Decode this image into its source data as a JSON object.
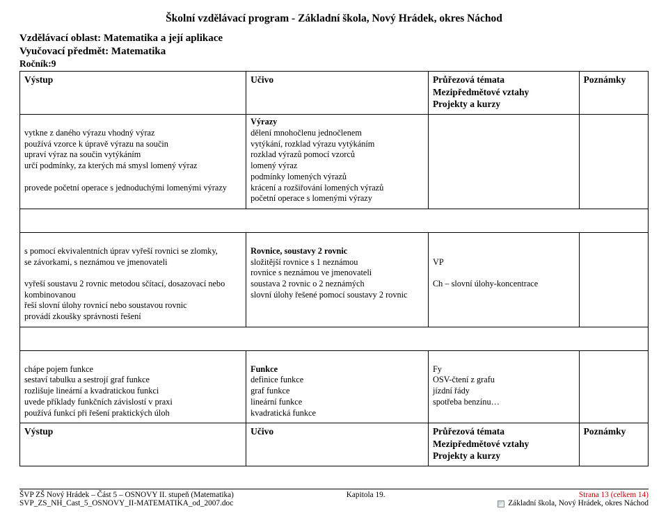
{
  "doc": {
    "title_center": "Školní vzdělávací program  -  Základní škola, Nový Hrádek, okres Náchod",
    "oblast": "Vzdělávací oblast: Matematika a její aplikace",
    "predmet": "Vyučovací předmět: Matematika",
    "rocnik": "Ročník:9"
  },
  "headers": {
    "vystup": "Výstup",
    "ucivo": "Učivo",
    "prurezova": "Průřezová témata\nMezipředmětové vztahy\nProjekty a kurzy",
    "poznamky": "Poznámky"
  },
  "rows": [
    {
      "vystup": "vytkne z daného výrazu vhodný výraz\npoužívá vzorce k úpravě výrazu na součin\nupraví výraz na součin vytýkáním\nurčí podmínky, za kterých má smysl lomený výraz\n\nprovede početní operace s jednoduchými lomenými výrazy",
      "ucivo_title": "Výrazy",
      "ucivo": "dělení mnohočlenu jednočlenem\nvytýkání, rozklad výrazu vytýkáním\nrozklad výrazů pomocí vzorců\nlomený výraz\npodmínky lomených výrazů\nkrácení a rozšiřování lomených výrazů\npočetní operace s lomenými výrazy",
      "prurezova": "",
      "poznamky": ""
    },
    {
      "vystup": "s pomocí ekvivalentních úprav vyřeší rovnici se zlomky,\nse závorkami, s neznámou ve jmenovateli\n\nvyřeší soustavu 2 rovnic metodou sčítací, dosazovací nebo\nkombinovanou\nřeší slovní úlohy rovnicí nebo soustavou rovnic\nprovádí zkoušky správnosti řešení",
      "ucivo_title": "Rovnice, soustavy 2 rovnic",
      "ucivo": "složitější rovnice s 1 neznámou\nrovnice s neznámou ve jmenovateli\nsoustava 2 rovnic o 2 neznámých\nslovní úlohy řešené pomocí soustavy 2 rovnic",
      "prurezova": "VP\n\nCh – slovní úlohy-koncentrace",
      "poznamky": ""
    },
    {
      "vystup": "chápe pojem funkce\nsestaví tabulku a sestrojí graf funkce\nrozlišuje lineární a kvadratickou funkci\nuvede příklady funkčních závislostí v praxi\npoužívá funkcí při řešení praktických úloh",
      "ucivo_title": "Funkce",
      "ucivo": "definice funkce\ngraf funkce\nlineární funkce\nkvadratická funkce",
      "prurezova": "Fy\nOSV-čtení z grafu\njízdní řády\nspotřeba benzínu…",
      "poznamky": ""
    }
  ],
  "footer": {
    "left1": "ŠVP ZŠ Nový Hrádek – Část 5 – OSNOVY II. stupeň (Matematika)",
    "left2": "SVP_ZS_NH_Cast_5_OSNOVY_II-MATEMATIKA_od_2007.doc",
    "mid": "Kapitola 19.",
    "right1": "Strana 13 (celkem 14)",
    "right2": "Základní škola, Nový Hrádek, okres Náchod"
  }
}
